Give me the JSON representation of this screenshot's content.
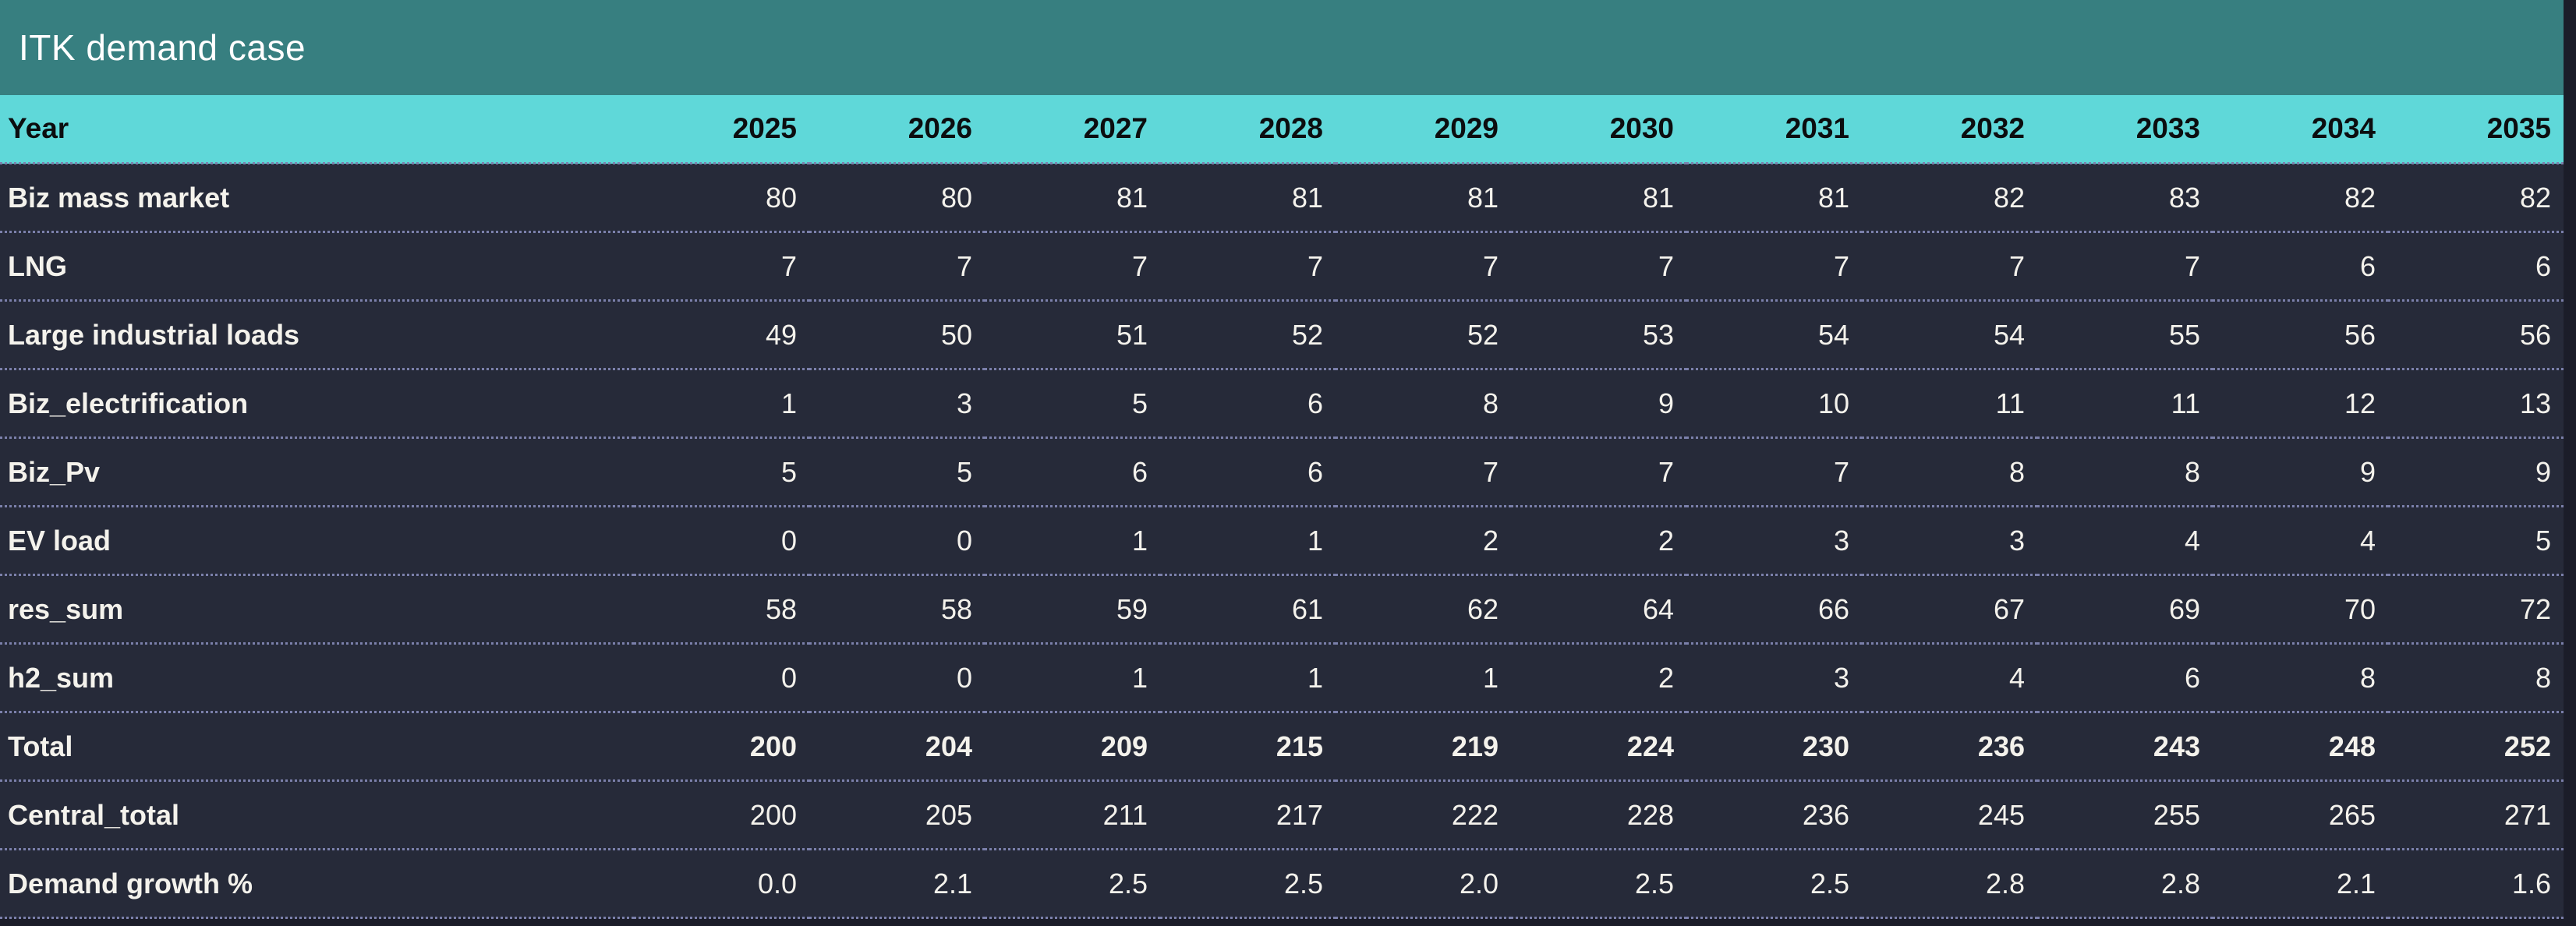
{
  "title": "ITK demand case",
  "colors": {
    "title_bar_bg": "#377f80",
    "title_text": "#ffffff",
    "header_bg": "#5fd8d9",
    "header_text": "#0c0d0f",
    "row_bg": "#262a39",
    "row_text": "#f4f2ec",
    "row_border": "#7b80ab",
    "page_bg": "#1b1d29"
  },
  "chart_data": {
    "type": "table",
    "title": "ITK demand case",
    "header_label": "Year",
    "years": [
      "2025",
      "2026",
      "2027",
      "2028",
      "2029",
      "2030",
      "2031",
      "2032",
      "2033",
      "2034",
      "2035"
    ],
    "rows": [
      {
        "label": "Biz mass market",
        "bold_values": false,
        "values": [
          "80",
          "80",
          "81",
          "81",
          "81",
          "81",
          "81",
          "82",
          "83",
          "82",
          "82"
        ]
      },
      {
        "label": "LNG",
        "bold_values": false,
        "values": [
          "7",
          "7",
          "7",
          "7",
          "7",
          "7",
          "7",
          "7",
          "7",
          "6",
          "6"
        ]
      },
      {
        "label": "Large industrial loads",
        "bold_values": false,
        "values": [
          "49",
          "50",
          "51",
          "52",
          "52",
          "53",
          "54",
          "54",
          "55",
          "56",
          "56"
        ]
      },
      {
        "label": "Biz_electrification",
        "bold_values": false,
        "values": [
          "1",
          "3",
          "5",
          "6",
          "8",
          "9",
          "10",
          "11",
          "11",
          "12",
          "13"
        ]
      },
      {
        "label": "Biz_Pv",
        "bold_values": false,
        "values": [
          "5",
          "5",
          "6",
          "6",
          "7",
          "7",
          "7",
          "8",
          "8",
          "9",
          "9"
        ]
      },
      {
        "label": "EV load",
        "bold_values": false,
        "values": [
          "0",
          "0",
          "1",
          "1",
          "2",
          "2",
          "3",
          "3",
          "4",
          "4",
          "5"
        ]
      },
      {
        "label": "res_sum",
        "bold_values": false,
        "values": [
          "58",
          "58",
          "59",
          "61",
          "62",
          "64",
          "66",
          "67",
          "69",
          "70",
          "72"
        ]
      },
      {
        "label": "h2_sum",
        "bold_values": false,
        "values": [
          "0",
          "0",
          "1",
          "1",
          "1",
          "2",
          "3",
          "4",
          "6",
          "8",
          "8"
        ]
      },
      {
        "label": "Total",
        "bold_values": true,
        "values": [
          "200",
          "204",
          "209",
          "215",
          "219",
          "224",
          "230",
          "236",
          "243",
          "248",
          "252"
        ]
      },
      {
        "label": "Central_total",
        "bold_values": false,
        "values": [
          "200",
          "205",
          "211",
          "217",
          "222",
          "228",
          "236",
          "245",
          "255",
          "265",
          "271"
        ]
      },
      {
        "label": "Demand growth %",
        "bold_values": false,
        "values": [
          "0.0",
          "2.1",
          "2.5",
          "2.5",
          "2.0",
          "2.5",
          "2.5",
          "2.8",
          "2.8",
          "2.1",
          "1.6"
        ]
      }
    ]
  }
}
